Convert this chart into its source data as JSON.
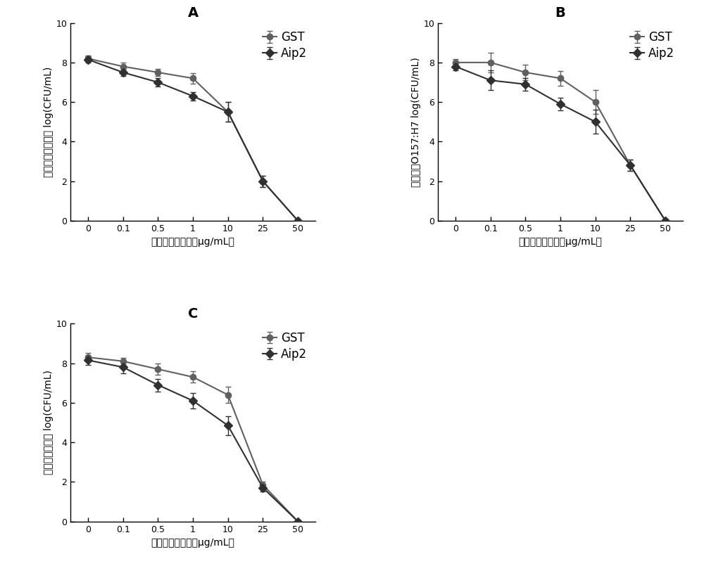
{
  "x_positions": [
    0,
    1,
    2,
    3,
    4,
    5,
    6
  ],
  "x_labels": [
    "0",
    "0.1",
    "0.5",
    "1",
    "10",
    "25",
    "50"
  ],
  "xlabel": "氪芯青霉素浓度（μg/mL）",
  "panel_A": {
    "title": "A",
    "ylabel": "单核增生李斯特菌 log(CFU/mL)",
    "GST_y": [
      8.2,
      7.8,
      7.5,
      7.2,
      5.5,
      2.0,
      0.0
    ],
    "GST_err": [
      0.15,
      0.18,
      0.18,
      0.28,
      0.5,
      0.28,
      0.04
    ],
    "Aip2_y": [
      8.15,
      7.5,
      7.0,
      6.3,
      5.5,
      2.0,
      0.0
    ],
    "Aip2_err": [
      0.15,
      0.18,
      0.22,
      0.22,
      0.5,
      0.28,
      0.04
    ]
  },
  "panel_B": {
    "title": "B",
    "ylabel": "大肠杆菌O157:H7 log(CFU/mL)",
    "GST_y": [
      8.0,
      8.0,
      7.5,
      7.2,
      6.0,
      2.8,
      0.0
    ],
    "GST_err": [
      0.18,
      0.5,
      0.38,
      0.38,
      0.6,
      0.28,
      0.04
    ],
    "Aip2_y": [
      7.8,
      7.1,
      6.9,
      5.9,
      5.0,
      2.8,
      0.0
    ],
    "Aip2_err": [
      0.18,
      0.5,
      0.32,
      0.32,
      0.6,
      0.28,
      0.04
    ]
  },
  "panel_C": {
    "title": "C",
    "ylabel": "鼠伤寒沙门氏菌 log(CFU/mL)",
    "GST_y": [
      8.3,
      8.1,
      7.7,
      7.3,
      6.4,
      1.85,
      0.0
    ],
    "GST_err": [
      0.22,
      0.18,
      0.3,
      0.28,
      0.42,
      0.18,
      0.04
    ],
    "Aip2_y": [
      8.15,
      7.8,
      6.9,
      6.1,
      4.85,
      1.7,
      0.0
    ],
    "Aip2_err": [
      0.22,
      0.32,
      0.32,
      0.38,
      0.48,
      0.18,
      0.04
    ]
  },
  "GST_color": "#606060",
  "Aip2_color": "#303030",
  "line_width": 1.5,
  "marker_size_GST": 6,
  "marker_size_Aip2": 6,
  "marker_GST": "o",
  "marker_Aip2": "D",
  "ylim": [
    0,
    10
  ],
  "yticks": [
    0,
    2,
    4,
    6,
    8,
    10
  ],
  "ax_background": "#ffffff",
  "fig_background": "#ffffff",
  "title_fontsize": 14,
  "label_fontsize": 10,
  "tick_fontsize": 9,
  "legend_fontsize": 12
}
